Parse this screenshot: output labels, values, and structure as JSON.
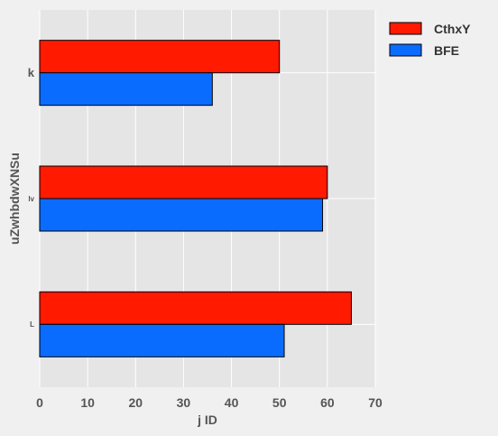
{
  "chart_data": {
    "type": "bar",
    "orientation": "horizontal",
    "categories": [
      "k",
      "lv",
      "L"
    ],
    "series": [
      {
        "name": "CthxY",
        "color": "#ff1a00",
        "values": [
          50,
          60,
          65
        ]
      },
      {
        "name": "BFE",
        "color": "#0a6cff",
        "values": [
          36,
          59,
          51
        ]
      }
    ],
    "xlabel": "j ID",
    "ylabel": "uZwhbdwXNSu",
    "xlim": [
      0,
      70
    ],
    "xticks": [
      0,
      10,
      20,
      30,
      40,
      50,
      60,
      70
    ],
    "grid": true,
    "legend_position": "top-right"
  }
}
